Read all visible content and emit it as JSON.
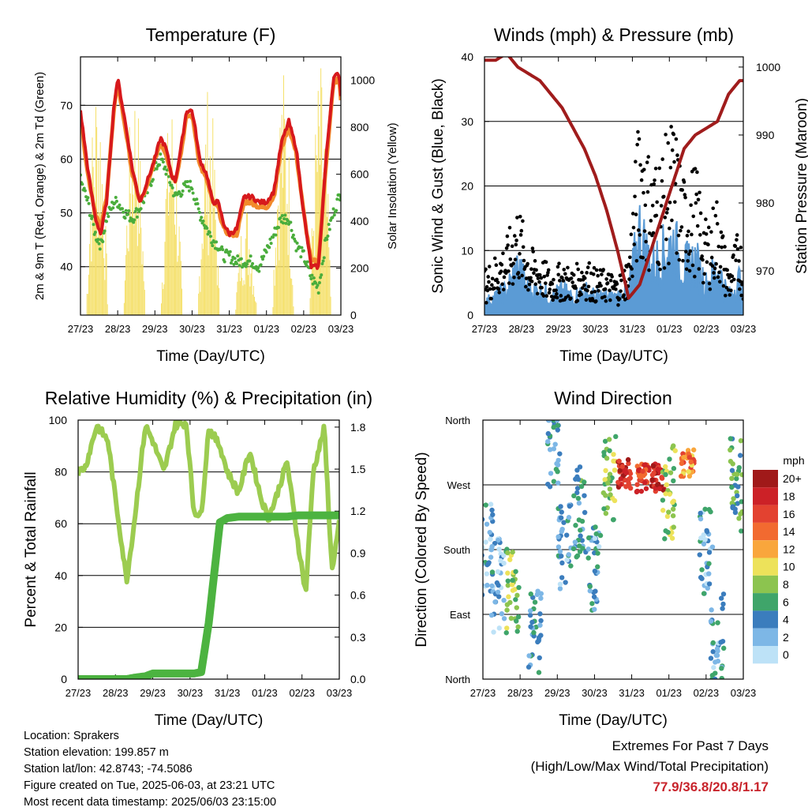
{
  "info": {
    "location": "Location: Sprakers",
    "elevation": "Station elevation: 199.857 m",
    "latlon": "Station lat/lon: 42.8743; -74.5086",
    "created": "Figure created on Tue, 2025-06-03, at 23:21 UTC",
    "recent": "Most recent data timestamp: 2025/06/03 23:15:00"
  },
  "extremes": {
    "title": "Extremes For Past 7 Days",
    "subtitle": "(High/Low/Max Wind/Total Precipitation)",
    "values": "77.9/36.8/20.8/1.17"
  },
  "colors": {
    "temp_2m": "#d7191c",
    "temp_9m": "#f28a2c",
    "dewpoint": "#4aad3c",
    "solar": "#f5e06a",
    "sonic_wind": "#5b9bd5",
    "gust": "#000000",
    "pressure": "#a01c1c",
    "rh": "#9ccc50",
    "precip": "#4cb340"
  },
  "chart_data": [
    {
      "type": "line",
      "title": "Temperature (F)",
      "xlabel": "Time (Day/UTC)",
      "ylabel": "2m & 9m T (Red, Orange) & 2m Td (Green)",
      "ylabel_right": "Solar Insolation (Yellow)",
      "x_ticks": [
        "27/23",
        "28/23",
        "29/23",
        "30/23",
        "31/23",
        "01/23",
        "02/23",
        "03/23"
      ],
      "ylim": [
        31,
        79
      ],
      "y_ticks": [
        "40",
        "50",
        "60",
        "70"
      ],
      "y2lim": [
        0,
        1100
      ],
      "y2_ticks": [
        "0",
        "200",
        "400",
        "600",
        "800",
        "1000"
      ],
      "grid": true,
      "x_days": [
        0,
        0.2,
        0.4,
        0.55,
        0.7,
        0.9,
        1.0,
        1.2,
        1.4,
        1.6,
        1.8,
        2.0,
        2.15,
        2.3,
        2.45,
        2.55,
        2.7,
        2.85,
        3.0,
        3.1,
        3.2,
        3.4,
        3.55,
        3.7,
        3.85,
        4.0,
        4.2,
        4.4,
        4.6,
        4.8,
        5.0,
        5.2,
        5.4,
        5.6,
        5.8,
        6.0,
        6.2,
        6.4,
        6.6,
        6.8,
        6.95,
        7.0
      ],
      "series": [
        {
          "name": "2m T",
          "values": [
            69,
            58,
            49,
            46,
            52,
            70,
            75,
            67,
            58,
            52,
            56,
            60,
            64,
            62,
            57,
            56,
            62,
            69,
            69,
            65,
            60,
            57,
            52,
            52,
            48,
            46,
            47,
            53,
            53,
            52,
            52,
            54,
            63,
            67,
            62,
            50,
            40,
            40,
            60,
            75,
            76,
            72
          ]
        },
        {
          "name": "9m T",
          "values": [
            68,
            57,
            50,
            47,
            53,
            69,
            74,
            66,
            57,
            52,
            55,
            60,
            63,
            61,
            57,
            56,
            61,
            68,
            68,
            64,
            59,
            56,
            52,
            51,
            47,
            46,
            46,
            52,
            52,
            51,
            51,
            53,
            62,
            66,
            61,
            50,
            41,
            41,
            59,
            74,
            75,
            71
          ]
        },
        {
          "name": "2m Td",
          "values": [
            56,
            52,
            46,
            44,
            49,
            52,
            52,
            50,
            49,
            51,
            54,
            58,
            60,
            58,
            55,
            53,
            54,
            55,
            55,
            52,
            50,
            47,
            45,
            44,
            42,
            42,
            41,
            41,
            41,
            40,
            43,
            46,
            49,
            49,
            44,
            42,
            38,
            36,
            45,
            50,
            53,
            54
          ]
        },
        {
          "name": "Solar Insolation",
          "peaks_day": [
            0.45,
            1.45,
            2.45,
            3.45,
            4.45,
            5.45,
            6.45
          ],
          "peaks_value": [
            1080,
            1050,
            950,
            1000,
            500,
            1080,
            1080
          ]
        }
      ]
    },
    {
      "type": "scatter",
      "title": "Winds (mph) & Pressure (mb)",
      "xlabel": "Time (Day/UTC)",
      "ylabel": "Sonic Wind & Gust (Blue, Black)",
      "ylabel_right": "Station Pressure (Maroon)",
      "x_ticks": [
        "27/23",
        "28/23",
        "29/23",
        "30/23",
        "31/23",
        "01/23",
        "02/23",
        "03/23"
      ],
      "ylim": [
        0,
        40
      ],
      "y_ticks": [
        "0",
        "10",
        "20",
        "30",
        "40"
      ],
      "y2lim": [
        963.5,
        1001.5
      ],
      "y2_ticks": [
        "970",
        "980",
        "990",
        "1000"
      ],
      "grid": true,
      "x_days": [
        0,
        0.3,
        0.6,
        0.9,
        1.2,
        1.5,
        1.8,
        2.1,
        2.4,
        2.7,
        3.0,
        3.3,
        3.6,
        3.9,
        4.2,
        4.5,
        4.8,
        5.1,
        5.4,
        5.7,
        6.0,
        6.3,
        6.6,
        6.9,
        7.0
      ],
      "series": [
        {
          "name": "Sonic Wind",
          "values": [
            2,
            3,
            4,
            8,
            4,
            4,
            3,
            4,
            3,
            4,
            3,
            3,
            3,
            4,
            14,
            8,
            10,
            12,
            8,
            9,
            5,
            8,
            3,
            6,
            3
          ]
        },
        {
          "name": "Gust",
          "values": [
            6,
            8,
            10,
            15,
            9,
            8,
            6,
            7,
            6,
            8,
            6,
            6,
            5,
            8,
            28,
            20,
            22,
            26,
            18,
            20,
            12,
            16,
            6,
            12,
            6
          ]
        },
        {
          "name": "Station Pressure",
          "values": [
            1001,
            1001,
            1002,
            1000,
            999,
            998,
            996,
            994,
            991,
            988,
            984,
            979,
            973,
            966,
            968,
            973,
            978,
            983,
            988,
            990,
            991,
            992,
            996,
            998,
            998
          ]
        }
      ]
    },
    {
      "type": "line",
      "title": "Relative Humidity (%) & Precipitation (in)",
      "xlabel": "Time (Day/UTC)",
      "ylabel": "Percent & Total Rainfall",
      "x_ticks": [
        "27/23",
        "28/23",
        "29/23",
        "30/23",
        "31/23",
        "01/23",
        "02/23",
        "03/23"
      ],
      "ylim": [
        0,
        100
      ],
      "y_ticks": [
        "0",
        "20",
        "40",
        "60",
        "80",
        "100"
      ],
      "y2lim": [
        0,
        1.85
      ],
      "y2_ticks": [
        "0.0",
        "0.3",
        "0.6",
        "0.9",
        "1.2",
        "1.5",
        "1.8"
      ],
      "grid": true,
      "x_days": [
        0,
        0.2,
        0.5,
        0.8,
        1.0,
        1.3,
        1.5,
        1.8,
        2.0,
        2.3,
        2.6,
        2.9,
        3.1,
        3.3,
        3.5,
        3.8,
        4.0,
        4.3,
        4.6,
        4.9,
        5.1,
        5.3,
        5.6,
        5.9,
        6.1,
        6.3,
        6.6,
        6.8,
        7.0
      ],
      "series": [
        {
          "name": "Relative Humidity",
          "values": [
            80,
            82,
            98,
            92,
            70,
            38,
            60,
            98,
            92,
            80,
            98,
            99,
            65,
            63,
            97,
            90,
            80,
            72,
            88,
            70,
            62,
            70,
            84,
            52,
            33,
            80,
            97,
            42,
            60
          ]
        },
        {
          "name": "Total Precipitation",
          "values": [
            0,
            0,
            0,
            0,
            0,
            0,
            0.01,
            0.02,
            0.04,
            0.04,
            0.04,
            0.04,
            0.04,
            0.05,
            0.4,
            1.12,
            1.15,
            1.16,
            1.16,
            1.16,
            1.16,
            1.16,
            1.16,
            1.17,
            1.17,
            1.17,
            1.17,
            1.17,
            1.17
          ]
        }
      ]
    },
    {
      "type": "scatter",
      "title": "Wind Direction",
      "xlabel": "Time (Day/UTC)",
      "ylabel": "Direction (Colored By Speed)",
      "x_ticks": [
        "27/23",
        "28/23",
        "29/23",
        "30/23",
        "31/23",
        "01/23",
        "02/23",
        "03/23"
      ],
      "y_ticks": [
        "North",
        "East",
        "South",
        "West",
        "North"
      ],
      "ylim": [
        0,
        360
      ],
      "grid": true,
      "legend": {
        "title": "mph",
        "labels": [
          "20+",
          "18",
          "16",
          "14",
          "12",
          "10",
          "8",
          "6",
          "4",
          "2",
          "0"
        ],
        "colors": [
          "#a01919",
          "#cc2127",
          "#e34230",
          "#f26a30",
          "#f9a63c",
          "#ede25a",
          "#8cc44f",
          "#3fa56a",
          "#3b7dbd",
          "#7db7e6",
          "#bde2f7"
        ]
      },
      "series": [
        {
          "name": "direction",
          "clusters": [
            {
              "x_day": 0.1,
              "dir": 180,
              "speed": 3
            },
            {
              "x_day": 0.4,
              "dir": 130,
              "speed": 2
            },
            {
              "x_day": 0.8,
              "dir": 120,
              "speed": 8
            },
            {
              "x_day": 1.4,
              "dir": 60,
              "speed": 4
            },
            {
              "x_day": 1.9,
              "dir": 330,
              "speed": 4
            },
            {
              "x_day": 2.2,
              "dir": 190,
              "speed": 3
            },
            {
              "x_day": 2.6,
              "dir": 230,
              "speed": 5
            },
            {
              "x_day": 3.0,
              "dir": 150,
              "speed": 3
            },
            {
              "x_day": 3.4,
              "dir": 280,
              "speed": 8
            },
            {
              "x_day": 3.8,
              "dir": 285,
              "speed": 18
            },
            {
              "x_day": 4.3,
              "dir": 280,
              "speed": 16
            },
            {
              "x_day": 4.7,
              "dir": 280,
              "speed": 18
            },
            {
              "x_day": 5.0,
              "dir": 260,
              "speed": 8
            },
            {
              "x_day": 5.5,
              "dir": 300,
              "speed": 13
            },
            {
              "x_day": 6.0,
              "dir": 180,
              "speed": 3
            },
            {
              "x_day": 6.3,
              "dir": 60,
              "speed": 3
            },
            {
              "x_day": 6.8,
              "dir": 270,
              "speed": 6
            }
          ]
        }
      ]
    }
  ]
}
